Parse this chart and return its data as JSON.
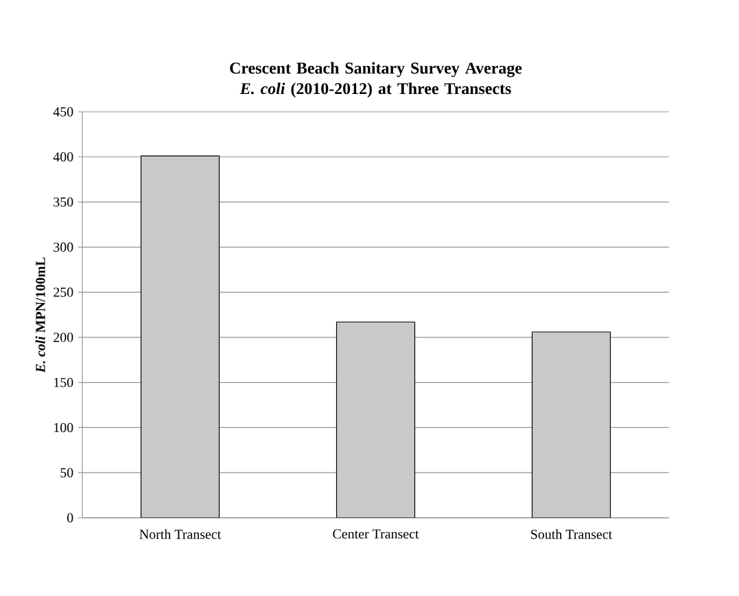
{
  "chart_data": {
    "type": "bar",
    "title": "Crescent Beach Sanitary Survey Average *E. coli* (2010-2012) at Three Transects",
    "ylabel": "*E. coli* MPN/100mL",
    "categories": [
      "North Transect",
      "Center Transect",
      "South Transect"
    ],
    "values": [
      401,
      217,
      206
    ],
    "color": "#c9c9c9",
    "ylim": [
      0,
      450
    ],
    "yticks": [
      0,
      50,
      100,
      150,
      200,
      250,
      300,
      350,
      400,
      450
    ],
    "grid": "y"
  }
}
